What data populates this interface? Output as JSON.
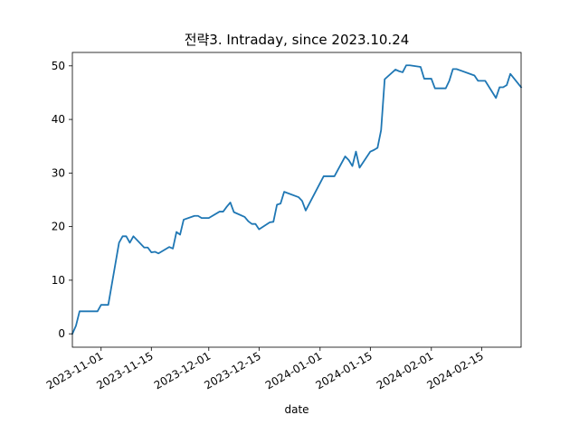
{
  "chart_data": {
    "type": "line",
    "title": "전략3. Intraday, since 2023.10.24",
    "xlabel": "date",
    "ylabel": "",
    "xlim": [
      "2023-10-24",
      "2024-02-26"
    ],
    "ylim": [
      -2.5,
      52.5
    ],
    "grid": false,
    "legend": "none",
    "line_color": "#1f77b4",
    "x_ticks": [
      "2023-11-01",
      "2023-11-15",
      "2023-12-01",
      "2023-12-15",
      "2024-01-01",
      "2024-01-15",
      "2024-02-01",
      "2024-02-15"
    ],
    "y_ticks": [
      0,
      10,
      20,
      30,
      40,
      50
    ],
    "series": [
      {
        "x": [
          "2023-10-24",
          "2023-10-25",
          "2023-10-26",
          "2023-10-27",
          "2023-10-30",
          "2023-10-31",
          "2023-11-01",
          "2023-11-02",
          "2023-11-03",
          "2023-11-06",
          "2023-11-07",
          "2023-11-08",
          "2023-11-09",
          "2023-11-10",
          "2023-11-13",
          "2023-11-14",
          "2023-11-15",
          "2023-11-16",
          "2023-11-17",
          "2023-11-20",
          "2023-11-21",
          "2023-11-22",
          "2023-11-23",
          "2023-11-24",
          "2023-11-27",
          "2023-11-28",
          "2023-11-29",
          "2023-11-30",
          "2023-12-01",
          "2023-12-04",
          "2023-12-05",
          "2023-12-06",
          "2023-12-07",
          "2023-12-08",
          "2023-12-11",
          "2023-12-12",
          "2023-12-13",
          "2023-12-14",
          "2023-12-15",
          "2023-12-18",
          "2023-12-19",
          "2023-12-20",
          "2023-12-21",
          "2023-12-22",
          "2023-12-26",
          "2023-12-27",
          "2023-12-28",
          "2024-01-02",
          "2024-01-03",
          "2024-01-04",
          "2024-01-05",
          "2024-01-08",
          "2024-01-09",
          "2024-01-10",
          "2024-01-11",
          "2024-01-12",
          "2024-01-15",
          "2024-01-16",
          "2024-01-17",
          "2024-01-18",
          "2024-01-19",
          "2024-01-22",
          "2024-01-23",
          "2024-01-24",
          "2024-01-25",
          "2024-01-26",
          "2024-01-29",
          "2024-01-30",
          "2024-01-31",
          "2024-02-01",
          "2024-02-02",
          "2024-02-05",
          "2024-02-06",
          "2024-02-07",
          "2024-02-08",
          "2024-02-13",
          "2024-02-14",
          "2024-02-15",
          "2024-02-16",
          "2024-02-19",
          "2024-02-20",
          "2024-02-21",
          "2024-02-22",
          "2024-02-23",
          "2024-02-26"
        ],
        "y": [
          0.0,
          1.5,
          4.2,
          4.2,
          4.2,
          4.2,
          5.4,
          5.4,
          5.4,
          17.0,
          18.2,
          18.2,
          17.0,
          18.2,
          16.1,
          16.1,
          15.2,
          15.3,
          15.0,
          16.2,
          15.9,
          19.0,
          18.5,
          21.3,
          22.0,
          22.0,
          21.6,
          21.6,
          21.6,
          22.8,
          22.8,
          23.7,
          24.5,
          22.7,
          21.8,
          21.0,
          20.5,
          20.5,
          19.5,
          20.8,
          20.9,
          24.1,
          24.3,
          26.5,
          25.5,
          24.8,
          23.0,
          29.4,
          29.4,
          29.4,
          29.4,
          33.1,
          32.4,
          31.3,
          34.0,
          31.0,
          34.0,
          34.3,
          34.7,
          38.0,
          47.5,
          49.3,
          49.0,
          48.8,
          50.1,
          50.1,
          49.8,
          47.6,
          47.6,
          47.6,
          45.8,
          45.8,
          47.2,
          49.4,
          49.4,
          48.2,
          47.2,
          47.2,
          47.2,
          44.0,
          46.0,
          46.0,
          46.4,
          48.5,
          46.0
        ]
      }
    ]
  }
}
